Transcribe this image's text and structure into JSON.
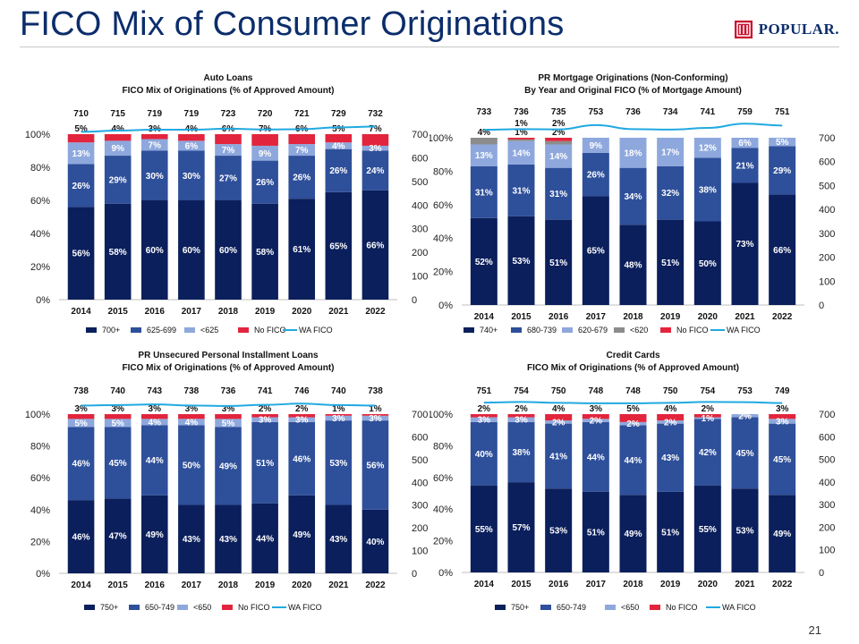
{
  "page": {
    "title": "FICO Mix of Consumer Originations",
    "page_number": "21",
    "logo_text": "POPULAR."
  },
  "colors": {
    "c1": "#0b1f5c",
    "c2": "#2e4f9a",
    "c3": "#8ea8dd",
    "c4": "#e2253c",
    "c4_gray": "#8c8c8c",
    "line": "#21a9e1"
  },
  "chart_data": [
    {
      "type": "bar",
      "title": "Auto Loans",
      "subtitle": "FICO Mix of Originations (% of Approved Amount)",
      "categories": [
        "2014",
        "2015",
        "2016",
        "2017",
        "2018",
        "2019",
        "2020",
        "2021",
        "2022"
      ],
      "series": [
        {
          "name": "700+",
          "values": [
            56,
            58,
            60,
            60,
            60,
            58,
            61,
            65,
            66
          ]
        },
        {
          "name": "625-699",
          "values": [
            26,
            29,
            30,
            30,
            27,
            26,
            26,
            26,
            24
          ]
        },
        {
          "name": "<625",
          "values": [
            13,
            9,
            7,
            6,
            7,
            9,
            7,
            4,
            3
          ]
        },
        {
          "name": "No FICO",
          "values": [
            5,
            4,
            3,
            4,
            6,
            7,
            6,
            5,
            7
          ]
        }
      ],
      "line": {
        "name": "WA FICO",
        "values": [
          710,
          715,
          719,
          719,
          723,
          720,
          721,
          729,
          732
        ]
      },
      "left_ticks": [
        "0%",
        "20%",
        "40%",
        "60%",
        "80%",
        "100%"
      ],
      "right_ticks": [
        "0",
        "100",
        "200",
        "300",
        "400",
        "500",
        "600",
        "700"
      ],
      "ylim": [
        0,
        100
      ],
      "y2lim": [
        0,
        700
      ],
      "legend": [
        "700+",
        "625-699",
        "<625",
        "No FICO",
        "WA FICO"
      ]
    },
    {
      "type": "bar",
      "title": "PR Mortgage Originations (Non-Conforming)",
      "subtitle": "By Year and Original FICO (% of Mortgage Amount)",
      "categories": [
        "2014",
        "2015",
        "2016",
        "2017",
        "2018",
        "2019",
        "2020",
        "2021",
        "2022"
      ],
      "series": [
        {
          "name": "740+",
          "values": [
            52,
            53,
            51,
            65,
            48,
            51,
            50,
            73,
            66
          ]
        },
        {
          "name": "680-739",
          "values": [
            31,
            31,
            31,
            26,
            34,
            32,
            38,
            21,
            29
          ]
        },
        {
          "name": "620-679",
          "values": [
            13,
            14,
            14,
            9,
            18,
            17,
            12,
            6,
            5
          ]
        },
        {
          "name": "<620",
          "values": [
            4,
            1,
            2,
            0,
            0,
            0,
            0,
            0,
            0
          ]
        },
        {
          "name": "No FICO",
          "values": [
            0,
            1,
            2,
            0,
            0,
            0,
            0,
            0,
            0
          ]
        }
      ],
      "line": {
        "name": "WA FICO",
        "values": [
          733,
          736,
          735,
          753,
          736,
          734,
          741,
          759,
          751
        ]
      },
      "left_ticks": [
        "0%",
        "20%",
        "40%",
        "60%",
        "80%",
        "100%"
      ],
      "right_ticks": [
        "0",
        "100",
        "200",
        "300",
        "400",
        "500",
        "600",
        "700"
      ],
      "ylim": [
        0,
        100
      ],
      "y2lim": [
        0,
        700
      ],
      "legend": [
        "740+",
        "680-739",
        "620-679",
        "<620",
        "No FICO",
        "WA FICO"
      ]
    },
    {
      "type": "bar",
      "title": "PR Unsecured Personal Installment Loans",
      "subtitle": "FICO Mix of Originations (% of Approved Amount)",
      "categories": [
        "2014",
        "2015",
        "2016",
        "2017",
        "2018",
        "2019",
        "2020",
        "2021",
        "2022"
      ],
      "series": [
        {
          "name": "750+",
          "values": [
            46,
            47,
            49,
            43,
            43,
            44,
            49,
            43,
            40
          ]
        },
        {
          "name": "650-749",
          "values": [
            46,
            45,
            44,
            50,
            49,
            51,
            46,
            53,
            56
          ]
        },
        {
          "name": "<650",
          "values": [
            5,
            5,
            4,
            4,
            5,
            3,
            3,
            3,
            3
          ]
        },
        {
          "name": "No FICO",
          "values": [
            3,
            3,
            3,
            3,
            3,
            2,
            2,
            1,
            1
          ]
        }
      ],
      "line": {
        "name": "WA FICO",
        "values": [
          738,
          740,
          743,
          738,
          736,
          741,
          746,
          740,
          738
        ]
      },
      "left_ticks": [
        "0%",
        "20%",
        "40%",
        "60%",
        "80%",
        "100%"
      ],
      "right_ticks": [
        "0",
        "100",
        "200",
        "300",
        "400",
        "500",
        "600",
        "700"
      ],
      "ylim": [
        0,
        100
      ],
      "y2lim": [
        0,
        700
      ],
      "legend": [
        "750+",
        "650-749",
        "<650",
        "No FICO",
        "WA FICO"
      ]
    },
    {
      "type": "bar",
      "title": "Credit Cards",
      "subtitle": "FICO Mix of Originations (% of Approved Amount)",
      "categories": [
        "2014",
        "2015",
        "2016",
        "2017",
        "2018",
        "2019",
        "2020",
        "2021",
        "2022"
      ],
      "series": [
        {
          "name": "750+",
          "values": [
            55,
            57,
            53,
            51,
            49,
            51,
            55,
            53,
            49
          ]
        },
        {
          "name": "650-749",
          "values": [
            40,
            38,
            41,
            44,
            44,
            43,
            42,
            45,
            45
          ]
        },
        {
          "name": "<650",
          "values": [
            3,
            3,
            2,
            2,
            2,
            2,
            1,
            2,
            3
          ]
        },
        {
          "name": "No FICO",
          "values": [
            2,
            2,
            4,
            3,
            5,
            4,
            2,
            0,
            3
          ]
        }
      ],
      "line": {
        "name": "WA FICO",
        "values": [
          751,
          754,
          750,
          748,
          748,
          750,
          754,
          753,
          749
        ]
      },
      "left_ticks": [
        "0%",
        "20%",
        "40%",
        "60%",
        "80%",
        "100%"
      ],
      "right_ticks": [
        "0",
        "100",
        "200",
        "300",
        "400",
        "500",
        "600",
        "700"
      ],
      "ylim": [
        0,
        100
      ],
      "y2lim": [
        0,
        700
      ],
      "legend": [
        "750+",
        "650-749",
        "<650",
        "No FICO",
        "WA FICO"
      ]
    }
  ]
}
